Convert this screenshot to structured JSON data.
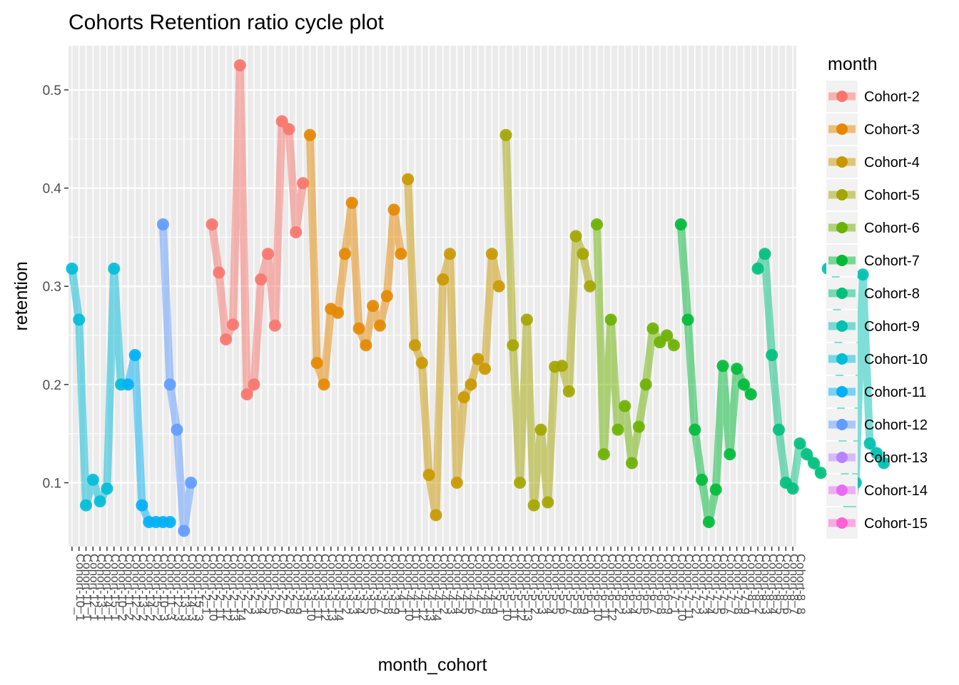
{
  "chart_data": {
    "type": "line",
    "title": "Cohorts Retention ratio cycle plot",
    "xlabel": "month_cohort",
    "ylabel": "retention",
    "ylim": [
      0.035,
      0.545
    ],
    "yticks": [
      0.1,
      0.2,
      0.3,
      0.4,
      0.5
    ],
    "ytick_labels": [
      "0.1",
      "0.2",
      "0.3",
      "0.4",
      "0.5"
    ],
    "grid": true,
    "legend": {
      "title": "month",
      "position": "right"
    },
    "x_count": 104,
    "x_tick_labels": [
      "Cohort-10_1",
      "Cohort-11_1",
      "Cohort-12_1",
      "Cohort-13_1",
      "Cohort-14_1",
      "Cohort-15_1",
      "Cohort-10_2",
      "Cohort-11_2",
      "Cohort-12_2",
      "Cohort-13_2",
      "Cohort-14_2",
      "Cohort-15_2",
      "Cohort-10_3",
      "Cohort-11_3",
      "Cohort-12_3",
      "Cohort-13_3",
      "Cohort-14_3",
      "Cohort-15_3",
      "Cohort-2_1",
      "Cohort-2_10",
      "Cohort-2_11",
      "Cohort-2_12",
      "Cohort-2_13",
      "Cohort-2_14",
      "Cohort-2_2",
      "Cohort-2_3",
      "Cohort-2_4",
      "Cohort-2_5",
      "Cohort-2_6",
      "Cohort-2_7",
      "Cohort-2_8",
      "Cohort-2_9",
      "Cohort-3_1",
      "Cohort-3_10",
      "Cohort-3_11",
      "Cohort-3_12",
      "Cohort-3_13",
      "Cohort-3_14",
      "Cohort-3_2",
      "Cohort-3_3",
      "Cohort-3_4",
      "Cohort-3_5",
      "Cohort-3_6",
      "Cohort-3_7",
      "Cohort-3_8",
      "Cohort-3_9",
      "Cohort-4_1",
      "Cohort-4_10",
      "Cohort-4_11",
      "Cohort-4_12",
      "Cohort-4_13",
      "Cohort-4_14",
      "Cohort-4_2",
      "Cohort-4_3",
      "Cohort-4_4",
      "Cohort-4_5",
      "Cohort-4_6",
      "Cohort-4_7",
      "Cohort-4_8",
      "Cohort-4_9",
      "Cohort-5_1",
      "Cohort-5_10",
      "Cohort-5_11",
      "Cohort-5_12",
      "Cohort-5_13",
      "Cohort-5_2",
      "Cohort-5_3",
      "Cohort-5_4",
      "Cohort-5_5",
      "Cohort-5_6",
      "Cohort-5_7",
      "Cohort-5_8",
      "Cohort-5_9",
      "Cohort-6_1",
      "Cohort-6_10",
      "Cohort-6_11",
      "Cohort-6_12",
      "Cohort-6_2",
      "Cohort-6_3",
      "Cohort-6_4",
      "Cohort-6_5",
      "Cohort-6_6",
      "Cohort-6_7",
      "Cohort-6_8",
      "Cohort-6_9",
      "Cohort-7_1",
      "Cohort-7_10",
      "Cohort-7_11",
      "Cohort-7_2",
      "Cohort-7_3",
      "Cohort-7_4",
      "Cohort-7_5",
      "Cohort-7_6",
      "Cohort-7_7",
      "Cohort-7_8",
      "Cohort-7_9",
      "Cohort-8_1",
      "Cohort-8_2",
      "Cohort-8_3",
      "Cohort-8_4",
      "Cohort-8_5",
      "Cohort-8_6",
      "Cohort-8_7",
      "Cohort-8_8"
    ],
    "series": [
      {
        "name": "Cohort-2",
        "color": "#F8766D",
        "x": [
          21,
          22,
          23,
          24,
          25,
          26,
          27,
          28,
          29,
          30,
          31,
          32,
          33,
          34
        ],
        "y": [
          0.363,
          0.314,
          0.246,
          0.261,
          0.525,
          0.19,
          0.2,
          0.307,
          0.333,
          0.26,
          0.468,
          0.46,
          0.355,
          0.405
        ]
      },
      {
        "name": "Cohort-3",
        "color": "#E58700",
        "x": [
          35,
          36,
          37,
          38,
          39,
          40,
          41,
          42,
          43,
          44,
          45,
          46,
          47,
          48
        ],
        "y": [
          0.454,
          0.222,
          0.2,
          0.277,
          0.273,
          0.333,
          0.385,
          0.257,
          0.24,
          0.28,
          0.26,
          0.29,
          0.378,
          0.333
        ]
      },
      {
        "name": "Cohort-4",
        "color": "#C99800",
        "x": [
          49,
          50,
          51,
          52,
          53,
          54,
          55,
          56,
          57,
          58,
          59,
          60,
          61,
          62
        ],
        "y": [
          0.409,
          0.24,
          0.222,
          0.108,
          0.067,
          0.307,
          0.333,
          0.1,
          0.187,
          0.2,
          0.226,
          0.216,
          0.333,
          0.3
        ]
      },
      {
        "name": "Cohort-5",
        "color": "#A3A500",
        "x": [
          63,
          64,
          65,
          66,
          67,
          68,
          69,
          70,
          71,
          72,
          73,
          74,
          75
        ],
        "y": [
          0.454,
          0.24,
          0.1,
          0.266,
          0.077,
          0.154,
          0.08,
          0.218,
          0.219,
          0.193,
          0.351,
          0.333,
          0.3
        ]
      },
      {
        "name": "Cohort-6",
        "color": "#6BB100",
        "x": [
          76,
          77,
          78,
          79,
          80,
          81,
          82,
          83,
          84,
          85,
          86,
          87
        ],
        "y": [
          0.363,
          0.129,
          0.266,
          0.154,
          0.178,
          0.12,
          0.157,
          0.2,
          0.257,
          0.243,
          0.25,
          0.24
        ]
      },
      {
        "name": "Cohort-7",
        "color": "#00BA38",
        "x": [
          88,
          89,
          90,
          91,
          92,
          93,
          94,
          95,
          96,
          97,
          98
        ],
        "y": [
          0.363,
          0.266,
          0.154,
          0.103,
          0.06,
          0.093,
          0.219,
          0.129,
          0.216,
          0.2,
          0.19
        ]
      },
      {
        "name": "Cohort-8",
        "color": "#00BF7D",
        "x": [
          99,
          100,
          101,
          102,
          103,
          104,
          105,
          106,
          107,
          108
        ],
        "y": [
          0.318,
          0.333,
          0.23,
          0.154,
          0.1,
          0.094,
          0.14,
          0.129,
          0.12,
          0.11
        ]
      },
      {
        "name": "Cohort-9",
        "color": "#00C0AF",
        "x": [
          109,
          110,
          111,
          112,
          113,
          114,
          115,
          116,
          117
        ],
        "y": [
          0.318,
          0.333,
          0.154,
          0.051,
          0.1,
          0.312,
          0.14,
          0.13,
          0.12
        ]
      },
      {
        "name": "Cohort-10",
        "color": "#00BCD8",
        "x": [
          1,
          2,
          3,
          4,
          5,
          6,
          7,
          8
        ],
        "y": [
          0.318,
          0.266,
          0.077,
          0.103,
          0.081,
          0.094,
          0.318,
          0.2
        ]
      },
      {
        "name": "Cohort-11",
        "color": "#00B0F6",
        "x": [
          9,
          10,
          11,
          12,
          13,
          14,
          15
        ],
        "y": [
          0.2,
          0.23,
          0.077,
          0.06,
          0.06,
          0.06,
          0.06
        ]
      },
      {
        "name": "Cohort-12",
        "color": "#619CFF",
        "x": [
          14,
          15,
          16,
          17,
          18
        ],
        "y": [
          0.363,
          0.2,
          0.154,
          0.051,
          0.1
        ]
      },
      {
        "name": "Cohort-13",
        "color": "#B983FF",
        "x": [],
        "y": []
      },
      {
        "name": "Cohort-14",
        "color": "#E76BF3",
        "x": [],
        "y": []
      },
      {
        "name": "Cohort-15",
        "color": "#FD61D1",
        "x": [],
        "y": []
      }
    ],
    "legend_entries": [
      "Cohort-2",
      "Cohort-3",
      "Cohort-4",
      "Cohort-5",
      "Cohort-6",
      "Cohort-7",
      "Cohort-8",
      "Cohort-9",
      "Cohort-10",
      "Cohort-11",
      "Cohort-12",
      "Cohort-13",
      "Cohort-14",
      "Cohort-15"
    ],
    "legend_colors": [
      "#F8766D",
      "#E58700",
      "#C99800",
      "#A3A500",
      "#6BB100",
      "#00BA38",
      "#00BF7D",
      "#00C0AF",
      "#00BCD8",
      "#00B0F6",
      "#619CFF",
      "#B983FF",
      "#E76BF3",
      "#FD61D1"
    ]
  }
}
